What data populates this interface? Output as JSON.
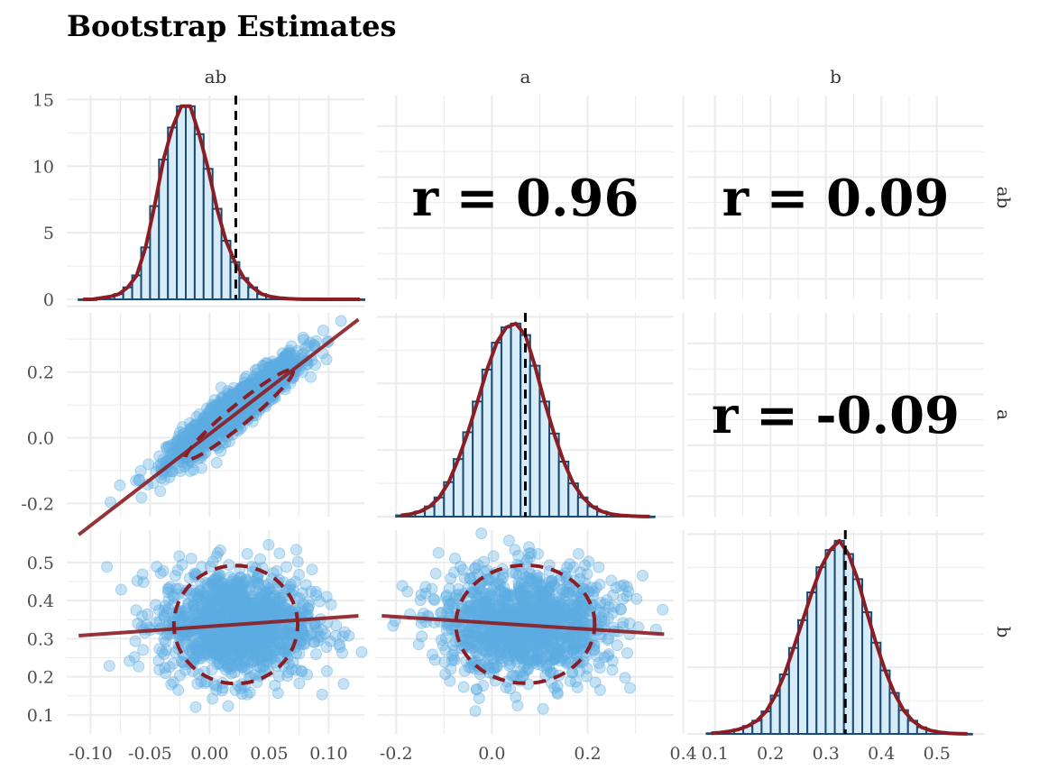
{
  "title": "Bootstrap Estimates",
  "colors": {
    "bar_fill": "#d6ecf8",
    "bar_stroke": "#1b4b72",
    "density": "#8b1d24",
    "points": "#5dade2",
    "grid": "#ebebeb",
    "vline": "#000000"
  },
  "chart_data": {
    "type": "scatter",
    "variables": [
      "ab",
      "a",
      "b"
    ],
    "column_strips": [
      "ab",
      "a",
      "b"
    ],
    "row_strips": [
      "ab",
      "a",
      "b"
    ],
    "axes": {
      "ab": {
        "range": [
          -0.12,
          0.13
        ],
        "ticks": [
          -0.1,
          -0.05,
          0.0,
          0.05,
          0.1
        ],
        "tick_labels": [
          "-0.10",
          "-0.05",
          "0.00",
          "0.05",
          "0.10"
        ]
      },
      "a": {
        "range": [
          -0.24,
          0.38
        ],
        "ticks": [
          -0.2,
          0.0,
          0.2,
          0.4
        ],
        "tick_labels": [
          "-0.2",
          "0.0",
          "0.2",
          "0.4"
        ]
      },
      "b": {
        "range": [
          0.05,
          0.585
        ],
        "ticks": [
          0.1,
          0.2,
          0.3,
          0.4,
          0.5
        ],
        "tick_labels": [
          "0.1",
          "0.2",
          "0.3",
          "0.4",
          "0.5"
        ]
      }
    },
    "histogram_axis": {
      "range": [
        0,
        15.3
      ],
      "ticks": [
        0,
        5,
        10,
        15
      ],
      "tick_labels": [
        "0",
        "5",
        "10",
        "15"
      ]
    },
    "panels": {
      "ab_ab": {
        "type": "histogram",
        "bin_start": -0.11,
        "bin_width": 0.0075,
        "counts": [
          0,
          0,
          0.1,
          0.2,
          0.4,
          0.9,
          1.8,
          3.9,
          7.0,
          10.5,
          12.9,
          14.5,
          14.5,
          12.4,
          9.8,
          6.8,
          4.4,
          2.8,
          1.6,
          0.9,
          0.4,
          0.2,
          0.1,
          0.05,
          0.02,
          0.01,
          0.005,
          0.002,
          0.001,
          0.001,
          0.0005,
          0.0001,
          0.0001,
          0.0001
        ],
        "median": 0.022
      },
      "a_a": {
        "type": "histogram",
        "bin_start": -0.2,
        "bin_width": 0.02,
        "counts": [
          0.1,
          0.2,
          0.4,
          0.8,
          1.5,
          2.7,
          4.5,
          6.6,
          9.0,
          11.5,
          13.6,
          14.8,
          15.1,
          14.2,
          11.8,
          9.0,
          6.5,
          4.3,
          2.6,
          1.5,
          0.8,
          0.4,
          0.2,
          0.1,
          0.05,
          0.02,
          0.01
        ],
        "median": 0.07
      },
      "b_b": {
        "type": "histogram",
        "bin_start": 0.085,
        "bin_width": 0.0165,
        "counts": [
          0.05,
          0.1,
          0.2,
          0.35,
          0.6,
          1.0,
          1.7,
          2.9,
          4.5,
          6.5,
          8.6,
          10.7,
          12.6,
          13.9,
          14.6,
          13.6,
          11.7,
          9.2,
          6.9,
          4.8,
          3.1,
          1.8,
          1.0,
          0.5,
          0.25,
          0.12,
          0.05,
          0.02,
          0.01
        ],
        "median": 0.335
      },
      "a_vs_ab": {
        "type": "scatter",
        "n_points": 1200,
        "correlation": 0.96,
        "fit_line": {
          "x": [
            -0.11,
            0.125
          ],
          "y": [
            -0.295,
            0.36
          ]
        },
        "ellipse": {
          "cx": 0.025,
          "cy": 0.07,
          "r1x": 0.045,
          "r1y": 0.135,
          "r2x": 0.0052,
          "r2y": -0.024
        }
      },
      "b_vs_ab": {
        "type": "scatter",
        "n_points": 1200,
        "correlation": 0.09,
        "fit_line": {
          "x": [
            -0.11,
            0.125
          ],
          "y": [
            0.308,
            0.36
          ]
        },
        "ellipse": {
          "cx": 0.022,
          "cy": 0.337,
          "rx": 0.052,
          "ry": 0.155
        }
      },
      "b_vs_a": {
        "type": "scatter",
        "n_points": 1200,
        "correlation": -0.09,
        "fit_line": {
          "x": [
            -0.23,
            0.36
          ],
          "y": [
            0.36,
            0.312
          ]
        },
        "ellipse": {
          "cx": 0.07,
          "cy": 0.338,
          "rx": 0.145,
          "ry": 0.155
        }
      }
    },
    "correlations": [
      {
        "row": "ab",
        "col": "a",
        "text": "r = 0.96"
      },
      {
        "row": "ab",
        "col": "b",
        "text": "r = 0.09"
      },
      {
        "row": "a",
        "col": "b",
        "text": "r = -0.09"
      }
    ]
  }
}
